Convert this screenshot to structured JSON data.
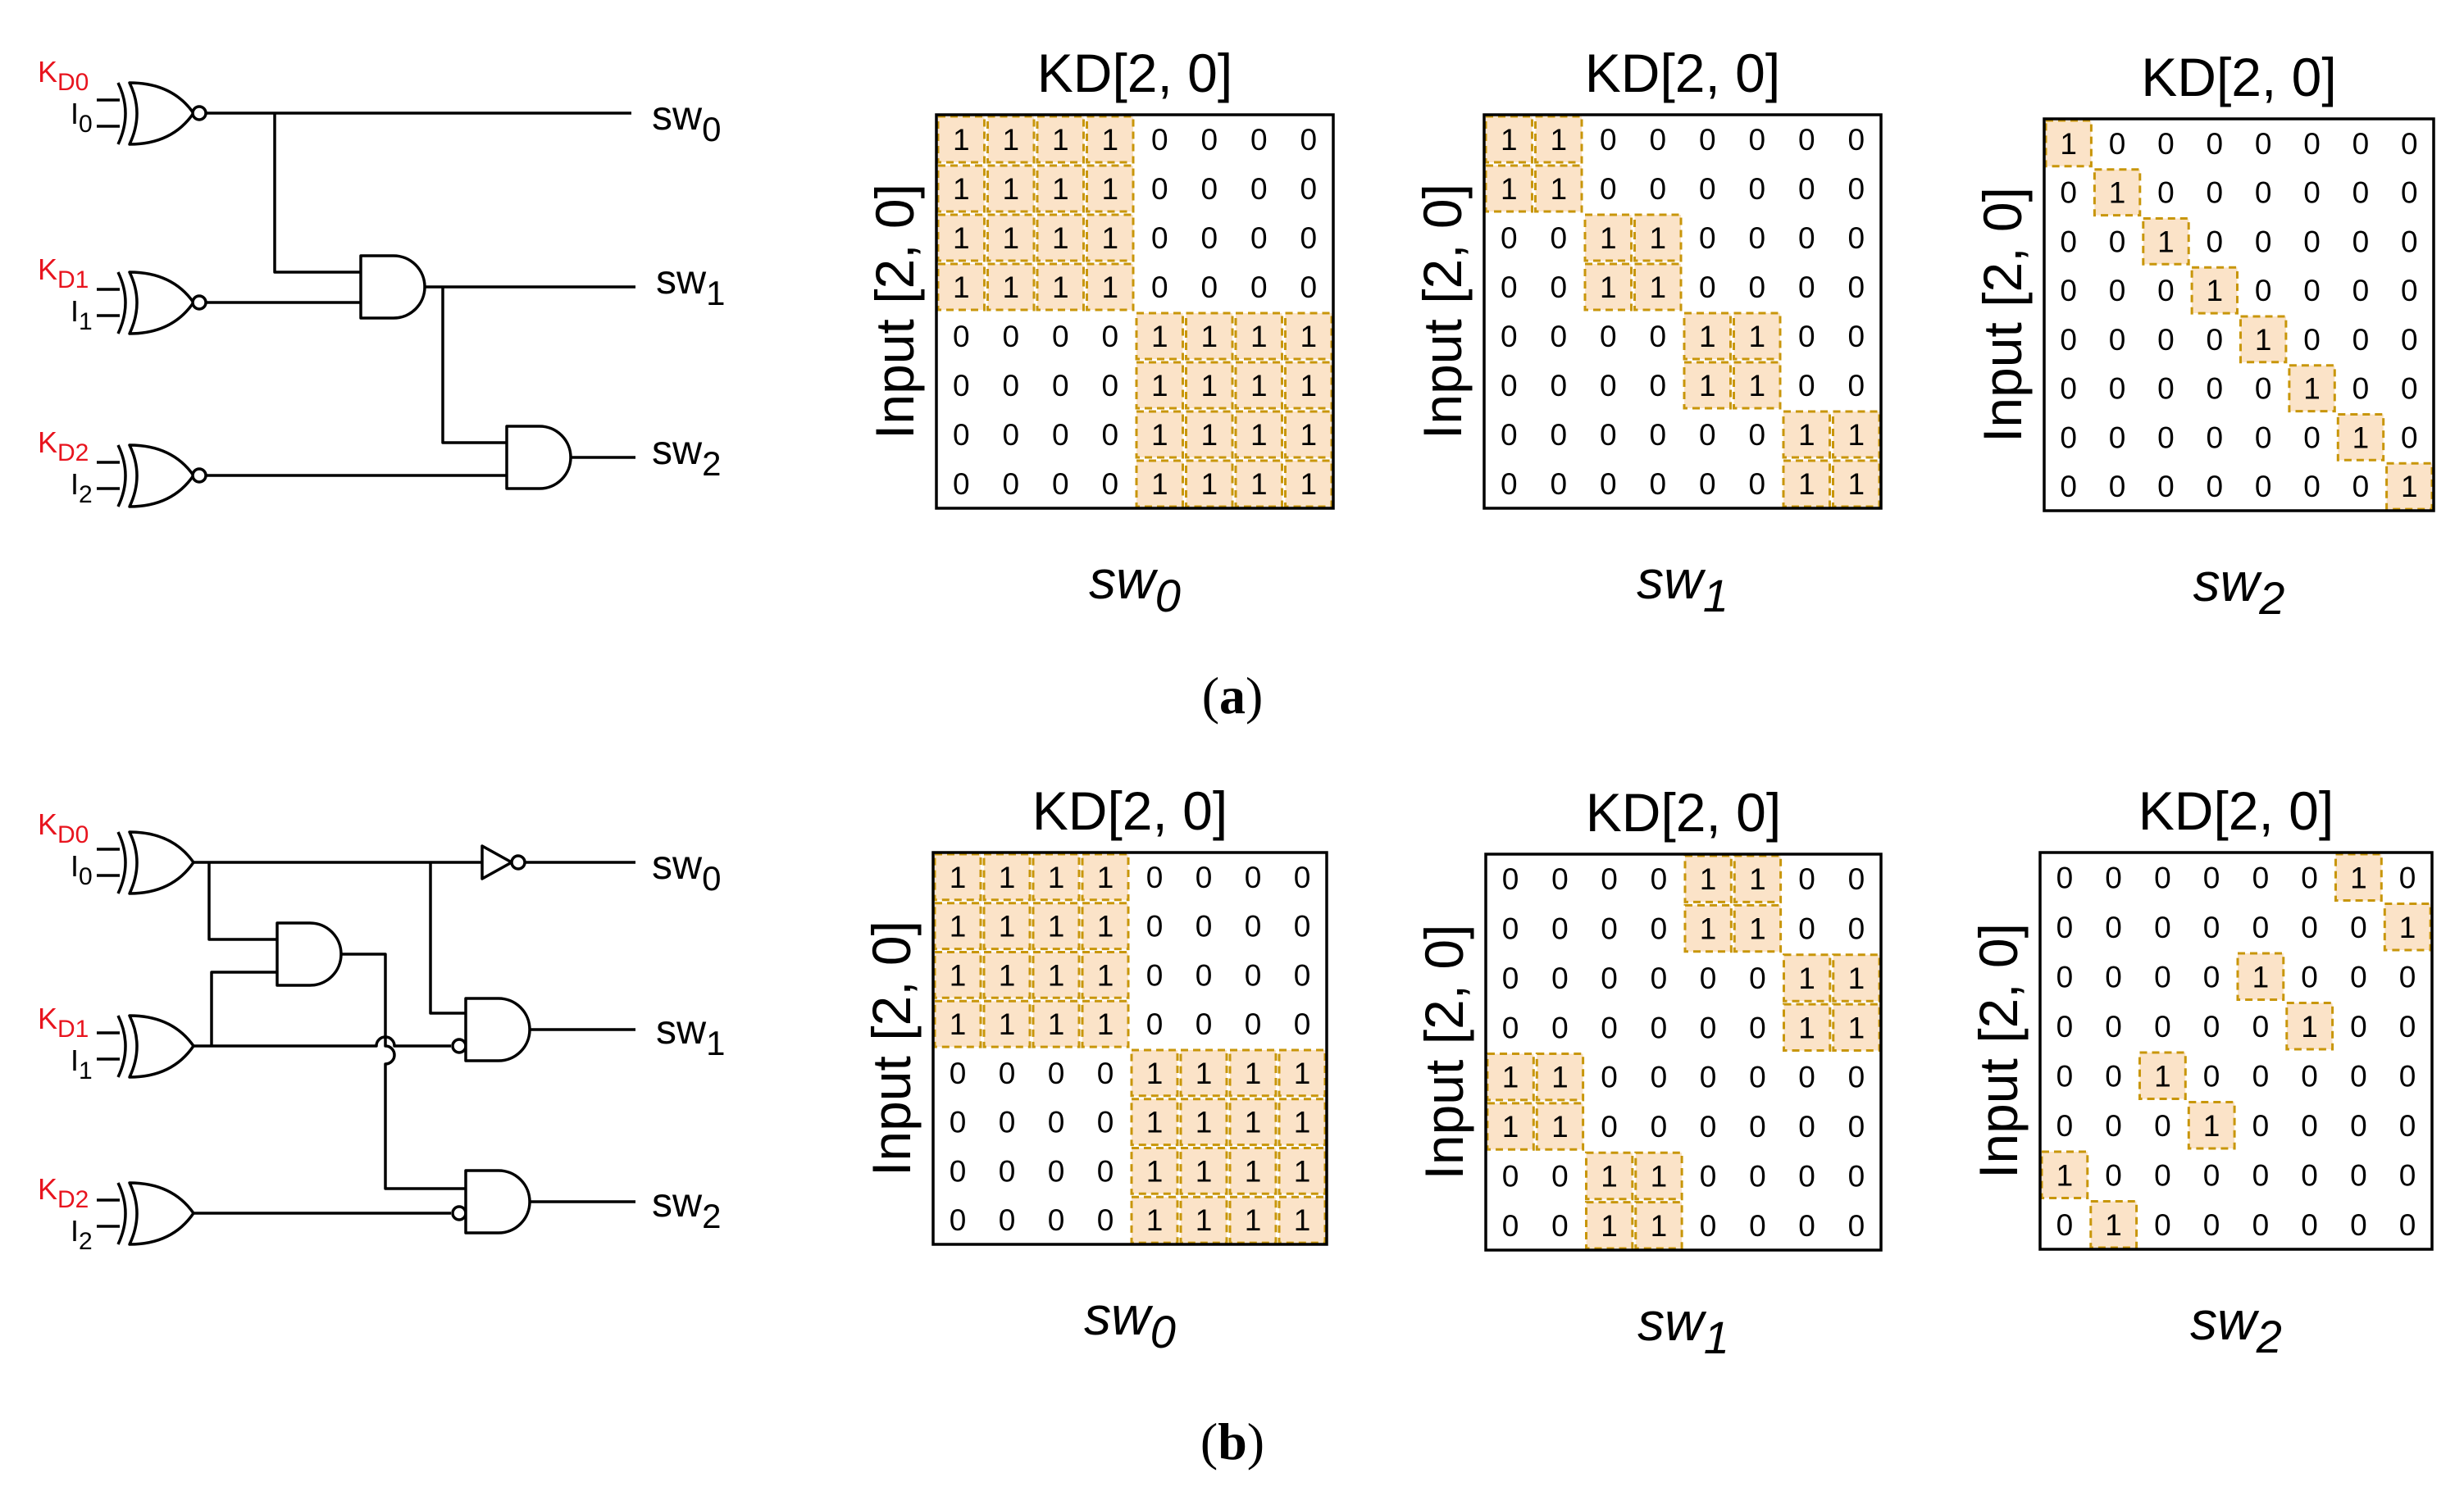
{
  "panels": [
    {
      "caption": {
        "open": "(",
        "letter": "a",
        "close": ")"
      },
      "circuit": {
        "inputs": [
          {
            "key_main": "K",
            "key_sub": "D0",
            "in_main": "I",
            "in_sub": "0"
          },
          {
            "key_main": "K",
            "key_sub": "D1",
            "in_main": "I",
            "in_sub": "1"
          },
          {
            "key_main": "K",
            "key_sub": "D2",
            "in_main": "I",
            "in_sub": "2"
          }
        ],
        "outputs": [
          {
            "main": "sw",
            "sub": "0"
          },
          {
            "main": "sw",
            "sub": "1"
          },
          {
            "main": "sw",
            "sub": "2"
          }
        ]
      },
      "matrices": [
        {
          "title": "KD[2, 0]",
          "ylabel": "Input [2, 0]",
          "xlabel_main": "sw",
          "xlabel_sub": "0",
          "cells": [
            [
              1,
              1,
              1,
              1,
              0,
              0,
              0,
              0
            ],
            [
              1,
              1,
              1,
              1,
              0,
              0,
              0,
              0
            ],
            [
              1,
              1,
              1,
              1,
              0,
              0,
              0,
              0
            ],
            [
              1,
              1,
              1,
              1,
              0,
              0,
              0,
              0
            ],
            [
              0,
              0,
              0,
              0,
              1,
              1,
              1,
              1
            ],
            [
              0,
              0,
              0,
              0,
              1,
              1,
              1,
              1
            ],
            [
              0,
              0,
              0,
              0,
              1,
              1,
              1,
              1
            ],
            [
              0,
              0,
              0,
              0,
              1,
              1,
              1,
              1
            ]
          ]
        },
        {
          "title": "KD[2, 0]",
          "ylabel": "Input [2, 0]",
          "xlabel_main": "sw",
          "xlabel_sub": "1",
          "cells": [
            [
              1,
              1,
              0,
              0,
              0,
              0,
              0,
              0
            ],
            [
              1,
              1,
              0,
              0,
              0,
              0,
              0,
              0
            ],
            [
              0,
              0,
              1,
              1,
              0,
              0,
              0,
              0
            ],
            [
              0,
              0,
              1,
              1,
              0,
              0,
              0,
              0
            ],
            [
              0,
              0,
              0,
              0,
              1,
              1,
              0,
              0
            ],
            [
              0,
              0,
              0,
              0,
              1,
              1,
              0,
              0
            ],
            [
              0,
              0,
              0,
              0,
              0,
              0,
              1,
              1
            ],
            [
              0,
              0,
              0,
              0,
              0,
              0,
              1,
              1
            ]
          ]
        },
        {
          "title": "KD[2, 0]",
          "ylabel": "Input [2, 0]",
          "xlabel_main": "sw",
          "xlabel_sub": "2",
          "cells": [
            [
              1,
              0,
              0,
              0,
              0,
              0,
              0,
              0
            ],
            [
              0,
              1,
              0,
              0,
              0,
              0,
              0,
              0
            ],
            [
              0,
              0,
              1,
              0,
              0,
              0,
              0,
              0
            ],
            [
              0,
              0,
              0,
              1,
              0,
              0,
              0,
              0
            ],
            [
              0,
              0,
              0,
              0,
              1,
              0,
              0,
              0
            ],
            [
              0,
              0,
              0,
              0,
              0,
              1,
              0,
              0
            ],
            [
              0,
              0,
              0,
              0,
              0,
              0,
              1,
              0
            ],
            [
              0,
              0,
              0,
              0,
              0,
              0,
              0,
              1
            ]
          ]
        }
      ]
    },
    {
      "caption": {
        "open": "(",
        "letter": "b",
        "close": ")"
      },
      "circuit": {
        "inputs": [
          {
            "key_main": "K",
            "key_sub": "D0",
            "in_main": "I",
            "in_sub": "0"
          },
          {
            "key_main": "K",
            "key_sub": "D1",
            "in_main": "I",
            "in_sub": "1"
          },
          {
            "key_main": "K",
            "key_sub": "D2",
            "in_main": "I",
            "in_sub": "2"
          }
        ],
        "outputs": [
          {
            "main": "sw",
            "sub": "0"
          },
          {
            "main": "sw",
            "sub": "1"
          },
          {
            "main": "sw",
            "sub": "2"
          }
        ]
      },
      "matrices": [
        {
          "title": "KD[2, 0]",
          "ylabel": "Input [2, 0]",
          "xlabel_main": "sw",
          "xlabel_sub": "0",
          "cells": [
            [
              1,
              1,
              1,
              1,
              0,
              0,
              0,
              0
            ],
            [
              1,
              1,
              1,
              1,
              0,
              0,
              0,
              0
            ],
            [
              1,
              1,
              1,
              1,
              0,
              0,
              0,
              0
            ],
            [
              1,
              1,
              1,
              1,
              0,
              0,
              0,
              0
            ],
            [
              0,
              0,
              0,
              0,
              1,
              1,
              1,
              1
            ],
            [
              0,
              0,
              0,
              0,
              1,
              1,
              1,
              1
            ],
            [
              0,
              0,
              0,
              0,
              1,
              1,
              1,
              1
            ],
            [
              0,
              0,
              0,
              0,
              1,
              1,
              1,
              1
            ]
          ]
        },
        {
          "title": "KD[2, 0]",
          "ylabel": "Input [2, 0]",
          "xlabel_main": "sw",
          "xlabel_sub": "1",
          "cells": [
            [
              0,
              0,
              0,
              0,
              1,
              1,
              0,
              0
            ],
            [
              0,
              0,
              0,
              0,
              1,
              1,
              0,
              0
            ],
            [
              0,
              0,
              0,
              0,
              0,
              0,
              1,
              1
            ],
            [
              0,
              0,
              0,
              0,
              0,
              0,
              1,
              1
            ],
            [
              1,
              1,
              0,
              0,
              0,
              0,
              0,
              0
            ],
            [
              1,
              1,
              0,
              0,
              0,
              0,
              0,
              0
            ],
            [
              0,
              0,
              1,
              1,
              0,
              0,
              0,
              0
            ],
            [
              0,
              0,
              1,
              1,
              0,
              0,
              0,
              0
            ]
          ]
        },
        {
          "title": "KD[2, 0]",
          "ylabel": "Input [2, 0]",
          "xlabel_main": "sw",
          "xlabel_sub": "2",
          "cells": [
            [
              0,
              0,
              0,
              0,
              0,
              0,
              1,
              0
            ],
            [
              0,
              0,
              0,
              0,
              0,
              0,
              0,
              1
            ],
            [
              0,
              0,
              0,
              0,
              1,
              0,
              0,
              0
            ],
            [
              0,
              0,
              0,
              0,
              0,
              1,
              0,
              0
            ],
            [
              0,
              0,
              1,
              0,
              0,
              0,
              0,
              0
            ],
            [
              0,
              0,
              0,
              1,
              0,
              0,
              0,
              0
            ],
            [
              1,
              0,
              0,
              0,
              0,
              0,
              0,
              0
            ],
            [
              0,
              1,
              0,
              0,
              0,
              0,
              0,
              0
            ]
          ]
        }
      ]
    }
  ]
}
